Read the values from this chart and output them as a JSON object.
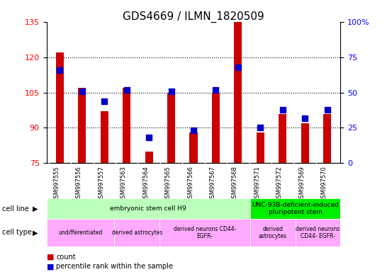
{
  "title": "GDS4669 / ILMN_1820509",
  "samples": [
    "GSM997555",
    "GSM997556",
    "GSM997557",
    "GSM997563",
    "GSM997564",
    "GSM997565",
    "GSM997566",
    "GSM997567",
    "GSM997568",
    "GSM997571",
    "GSM997572",
    "GSM997569",
    "GSM997570"
  ],
  "count_values": [
    122,
    107,
    97,
    107,
    80,
    105,
    88,
    105,
    135,
    88,
    96,
    92,
    96
  ],
  "percentile_values": [
    66,
    51,
    44,
    52,
    18,
    51,
    23,
    52,
    68,
    25,
    38,
    32,
    38
  ],
  "ylim_left": [
    75,
    135
  ],
  "ylim_right": [
    0,
    100
  ],
  "yticks_left": [
    75,
    90,
    105,
    120,
    135
  ],
  "yticks_right": [
    0,
    25,
    50,
    75,
    100
  ],
  "ytick_labels_right": [
    "0",
    "25",
    "50",
    "75",
    "100%"
  ],
  "bar_color": "#cc0000",
  "dot_color": "#0000cc",
  "grid_color": "#000000",
  "cell_line_groups": [
    {
      "label": "embryonic stem cell H9",
      "start": 0,
      "end": 9,
      "color": "#bbffbb"
    },
    {
      "label": "UNC-93B-deficient-induced\npluripotent stem",
      "start": 9,
      "end": 13,
      "color": "#00ee00"
    }
  ],
  "cell_type_groups": [
    {
      "label": "undifferentiated",
      "start": 0,
      "end": 3,
      "color": "#ffaaff"
    },
    {
      "label": "derived astrocytes",
      "start": 3,
      "end": 5,
      "color": "#ffaaff"
    },
    {
      "label": "derived neurons CD44-\nEGFR-",
      "start": 5,
      "end": 9,
      "color": "#ffaaff"
    },
    {
      "label": "derived\nastrocytes",
      "start": 9,
      "end": 11,
      "color": "#ffaaff"
    },
    {
      "label": "derived neurons\nCD44- EGFR-",
      "start": 11,
      "end": 13,
      "color": "#ffaaff"
    }
  ],
  "tick_label_fontsize": 8,
  "title_fontsize": 11,
  "bar_width": 0.35,
  "dot_size": 28,
  "background_color": "#ffffff",
  "axis_bg_color": "#ffffff",
  "xtick_bg_color": "#d8d8d8"
}
